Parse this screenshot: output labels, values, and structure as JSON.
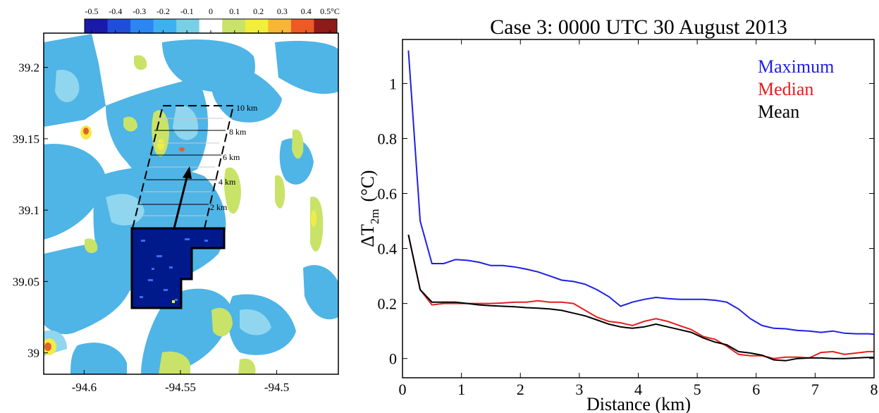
{
  "colorbar": {
    "tick_labels": [
      "-0.5",
      "-0.4",
      "-0.3",
      "-0.2",
      "-0.1",
      "0",
      "0.1",
      "0.2",
      "0.3",
      "0.4",
      "0.5°C"
    ],
    "range": [
      -0.5,
      0.5
    ],
    "colors": [
      "#1a1aa8",
      "#1f4fd8",
      "#2b86f0",
      "#3fb0ef",
      "#79cfe6",
      "#ffffff",
      "#c8e26a",
      "#f2ee3c",
      "#f7b637",
      "#ec5a25",
      "#8e1a1a"
    ]
  },
  "map": {
    "x_tick_labels": [
      "-94.6",
      "-94.55",
      "-94.5"
    ],
    "y_tick_labels": [
      "39.2",
      "39.15",
      "39.1",
      "39.05",
      "39"
    ],
    "xlim": [
      -94.621,
      -94.468
    ],
    "ylim": [
      38.985,
      39.224
    ],
    "distance_labels": [
      "2 km",
      "4 km",
      "6 km",
      "8 km",
      "10 km"
    ],
    "colors": {
      "lake": "#001a8c",
      "lake_speckle": "#3a6cf0",
      "cool": "#4fb4e6",
      "cool_light": "#8fd6ee",
      "warm": "#c9e368",
      "warm_yellow": "#f1ec45",
      "hot": "#e4602a"
    }
  },
  "chart_data": {
    "type": "line",
    "title": "Case 3: 0000 UTC 30 August 2013",
    "xlabel": "Distance (km)",
    "ylabel_main": "ΔT",
    "ylabel_sub": "2m",
    "ylabel_unit": "(°C)",
    "xlim": [
      0,
      8
    ],
    "ylim": [
      -0.07,
      1.16
    ],
    "x_ticks": [
      0,
      1,
      2,
      3,
      4,
      5,
      6,
      7,
      8
    ],
    "y_ticks": [
      0,
      0.2,
      0.4,
      0.6,
      0.8,
      1
    ],
    "y_tick_labels": [
      "0",
      "0.2",
      "0.4",
      "0.6",
      "0.8",
      "1"
    ],
    "legend_position": "top-right",
    "grid": false,
    "x": [
      0.1,
      0.3,
      0.5,
      0.7,
      0.9,
      1.1,
      1.3,
      1.5,
      1.7,
      1.9,
      2.1,
      2.3,
      2.5,
      2.7,
      2.9,
      3.1,
      3.3,
      3.5,
      3.7,
      3.9,
      4.1,
      4.3,
      4.5,
      4.7,
      4.9,
      5.1,
      5.3,
      5.5,
      5.7,
      5.9,
      6.1,
      6.3,
      6.5,
      6.7,
      6.9,
      7.1,
      7.3,
      7.5,
      7.7,
      7.9,
      8.0
    ],
    "series": [
      {
        "name": "Maximum",
        "color": "#1f1fe6",
        "values": [
          1.12,
          0.5,
          0.345,
          0.345,
          0.36,
          0.357,
          0.35,
          0.338,
          0.338,
          0.333,
          0.325,
          0.315,
          0.3,
          0.285,
          0.28,
          0.27,
          0.25,
          0.225,
          0.19,
          0.205,
          0.215,
          0.222,
          0.218,
          0.215,
          0.215,
          0.215,
          0.212,
          0.205,
          0.18,
          0.145,
          0.12,
          0.11,
          0.108,
          0.102,
          0.1,
          0.095,
          0.1,
          0.092,
          0.09,
          0.09,
          0.088
        ]
      },
      {
        "name": "Median",
        "color": "#e61e1e",
        "values": [
          0.45,
          0.25,
          0.195,
          0.2,
          0.2,
          0.2,
          0.2,
          0.2,
          0.202,
          0.205,
          0.205,
          0.21,
          0.205,
          0.205,
          0.2,
          0.175,
          0.15,
          0.135,
          0.13,
          0.12,
          0.135,
          0.145,
          0.135,
          0.12,
          0.105,
          0.08,
          0.07,
          0.045,
          0.015,
          0.01,
          0.01,
          0.0,
          0.005,
          0.005,
          0.002,
          0.022,
          0.025,
          0.015,
          0.02,
          0.025,
          0.025
        ]
      },
      {
        "name": "Mean",
        "color": "#000000",
        "values": [
          0.45,
          0.25,
          0.205,
          0.205,
          0.205,
          0.2,
          0.195,
          0.192,
          0.19,
          0.188,
          0.185,
          0.183,
          0.18,
          0.175,
          0.165,
          0.155,
          0.14,
          0.125,
          0.115,
          0.11,
          0.115,
          0.125,
          0.115,
          0.105,
          0.095,
          0.075,
          0.06,
          0.05,
          0.025,
          0.02,
          0.012,
          -0.005,
          -0.008,
          0.0,
          0.002,
          0.002,
          0.0,
          0.0,
          0.002,
          0.004,
          0.004
        ]
      }
    ]
  }
}
